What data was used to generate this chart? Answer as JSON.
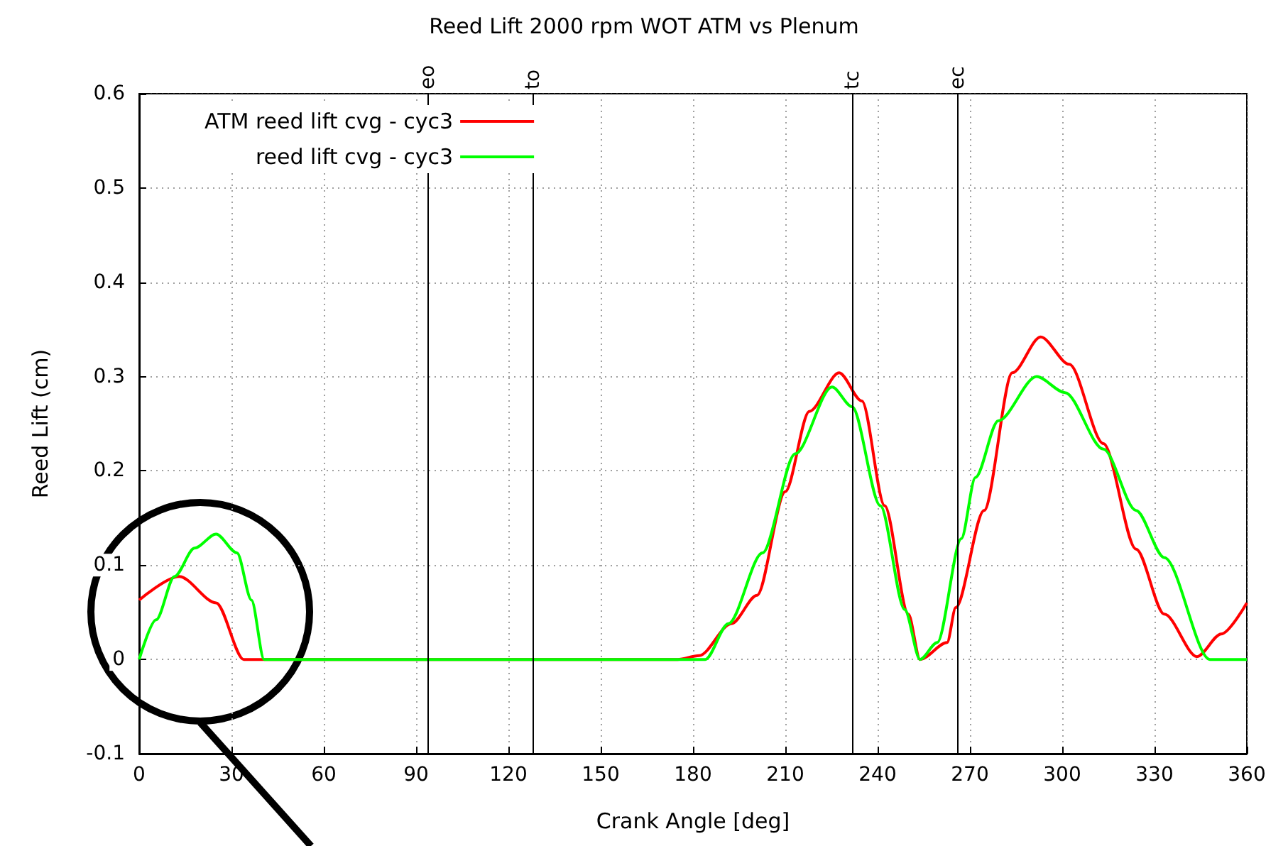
{
  "chart_data": {
    "type": "line",
    "title": "Reed Lift 2000 rpm WOT ATM vs Plenum",
    "xlabel": "Crank Angle [deg]",
    "ylabel": "Reed Lift (cm)",
    "xlim": [
      0,
      360
    ],
    "xticks": [
      0,
      30,
      60,
      90,
      120,
      150,
      180,
      210,
      240,
      270,
      300,
      330,
      360
    ],
    "ylim": [
      -0.1,
      0.6
    ],
    "yticks": [
      -0.1,
      0,
      0.1,
      0.2,
      0.3,
      0.4,
      0.5,
      0.6
    ],
    "grid": true,
    "legend": "top left",
    "marker": "none",
    "line_style": "solid",
    "series": [
      {
        "name": "ATM reed lift cvg - cyc3",
        "color": "#ff0000",
        "x": [
          0,
          13,
          25,
          34,
          100,
          175,
          182,
          192.5,
          200.8,
          210,
          217.8,
          227.5,
          234.9,
          242.3,
          250,
          253.8,
          262.6,
          265.4,
          274.6,
          283.8,
          293,
          302.3,
          313.4,
          324,
          333.2,
          343.8,
          351.7,
          360
        ],
        "values": [
          0.063,
          0.088,
          0.06,
          0,
          0,
          0,
          0.004,
          0.038,
          0.068,
          0.178,
          0.263,
          0.304,
          0.274,
          0.163,
          0.048,
          0,
          0.018,
          0.055,
          0.158,
          0.304,
          0.342,
          0.313,
          0.229,
          0.117,
          0.048,
          0.003,
          0.027,
          0.06
        ]
      },
      {
        "name": "reed lift cvg - cyc3",
        "color": "#00ff00",
        "x": [
          0,
          5.5,
          11.5,
          18,
          25,
          31.8,
          36.5,
          40.6,
          100,
          184,
          191.5,
          202.6,
          213.2,
          225.2,
          231.7,
          240.9,
          248.8,
          253.8,
          259.4,
          267.2,
          271.8,
          279.2,
          291.7,
          300.9,
          313.4,
          324,
          333.2,
          348,
          360
        ],
        "values": [
          0,
          0.042,
          0.088,
          0.118,
          0.133,
          0.113,
          0.063,
          0,
          0,
          0,
          0.038,
          0.113,
          0.218,
          0.289,
          0.268,
          0.163,
          0.053,
          0,
          0.018,
          0.128,
          0.193,
          0.253,
          0.3,
          0.283,
          0.223,
          0.158,
          0.108,
          0,
          0
        ]
      }
    ],
    "ref_lines": [
      {
        "axis": "x",
        "value": 94,
        "label": "eo",
        "color": "#000000"
      },
      {
        "axis": "x",
        "value": 128,
        "label": "to",
        "color": "#000000"
      },
      {
        "axis": "x",
        "value": 232,
        "label": "tc",
        "color": "#000000"
      },
      {
        "axis": "x",
        "value": 266,
        "label": "ec",
        "color": "#000000"
      }
    ]
  }
}
